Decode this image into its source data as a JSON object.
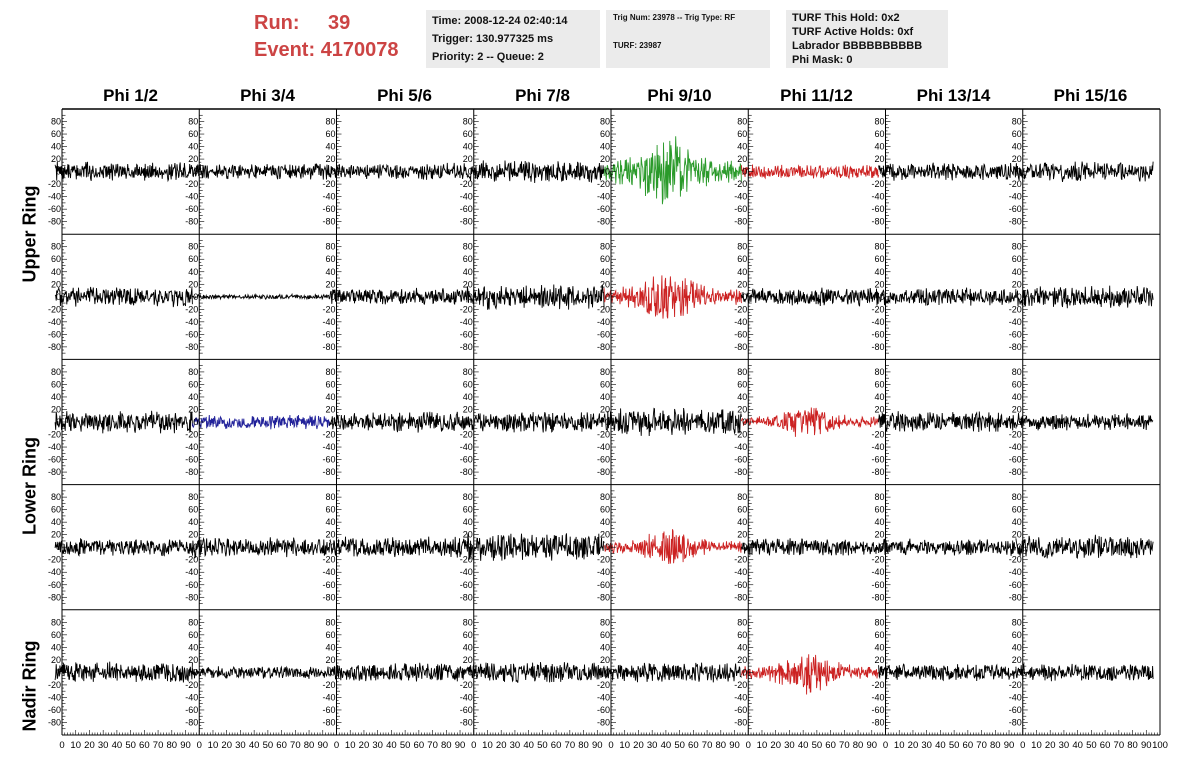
{
  "header": {
    "run_label": "Run:",
    "run_value": "39",
    "event_label": "Event:",
    "event_value": "4170078",
    "time": "Time: 2008-12-24 02:40:14",
    "trigger": "Trigger: 130.977325 ms",
    "priority": "Priority: 2 -- Queue: 2",
    "trig_num": "Trig Num: 23978 -- Trig Type: RF",
    "turf": "TURF: 23987",
    "turf_hold": "TURF This Hold: 0x2",
    "turf_active": "TURF Active Holds: 0xf",
    "labrador": "Labrador BBBBBBBBBB",
    "phi_mask": "Phi Mask: 0"
  },
  "columns": [
    "Phi 1/2",
    "Phi 3/4",
    "Phi 5/6",
    "Phi 7/8",
    "Phi 9/10",
    "Phi 11/12",
    "Phi 13/14",
    "Phi 15/16"
  ],
  "rings": [
    "Upper Ring",
    "Lower Ring",
    "Nadir Ring"
  ],
  "colors": {
    "default": "#000000",
    "green": "#2a9a2a",
    "red": "#cc2222",
    "blue": "#22229a"
  },
  "chart_data": {
    "type": "line",
    "grid_rows": 5,
    "grid_cols": 8,
    "xlim": [
      0,
      100
    ],
    "ylim": [
      -100,
      100
    ],
    "x_ticks": [
      0,
      10,
      20,
      30,
      40,
      50,
      60,
      70,
      80,
      90,
      100
    ],
    "y_ticks": [
      -80,
      -60,
      -40,
      -20,
      0,
      20,
      40,
      60,
      80
    ],
    "samples_per_trace": 260,
    "panels": [
      {
        "row": 0,
        "col": 0,
        "color": "default",
        "amplitude": 12
      },
      {
        "row": 0,
        "col": 1,
        "color": "default",
        "amplitude": 10
      },
      {
        "row": 0,
        "col": 2,
        "color": "default",
        "amplitude": 11
      },
      {
        "row": 0,
        "col": 3,
        "color": "default",
        "amplitude": 14
      },
      {
        "row": 0,
        "col": 4,
        "color": "green",
        "amplitude": 30
      },
      {
        "row": 0,
        "col": 5,
        "color": "red",
        "amplitude": 9
      },
      {
        "row": 0,
        "col": 6,
        "color": "default",
        "amplitude": 11
      },
      {
        "row": 0,
        "col": 7,
        "color": "default",
        "amplitude": 13
      },
      {
        "row": 1,
        "col": 0,
        "color": "default",
        "amplitude": 13
      },
      {
        "row": 1,
        "col": 1,
        "color": "default",
        "amplitude": 3
      },
      {
        "row": 1,
        "col": 2,
        "color": "default",
        "amplitude": 11
      },
      {
        "row": 1,
        "col": 3,
        "color": "default",
        "amplitude": 16
      },
      {
        "row": 1,
        "col": 4,
        "color": "red",
        "amplitude": 22
      },
      {
        "row": 1,
        "col": 5,
        "color": "default",
        "amplitude": 11
      },
      {
        "row": 1,
        "col": 6,
        "color": "default",
        "amplitude": 11
      },
      {
        "row": 1,
        "col": 7,
        "color": "default",
        "amplitude": 15
      },
      {
        "row": 2,
        "col": 0,
        "color": "default",
        "amplitude": 14
      },
      {
        "row": 2,
        "col": 1,
        "color": "blue",
        "amplitude": 9
      },
      {
        "row": 2,
        "col": 2,
        "color": "default",
        "amplitude": 13
      },
      {
        "row": 2,
        "col": 3,
        "color": "default",
        "amplitude": 13
      },
      {
        "row": 2,
        "col": 4,
        "color": "default",
        "amplitude": 18
      },
      {
        "row": 2,
        "col": 5,
        "color": "red",
        "amplitude": 13
      },
      {
        "row": 2,
        "col": 6,
        "color": "default",
        "amplitude": 13
      },
      {
        "row": 2,
        "col": 7,
        "color": "default",
        "amplitude": 11
      },
      {
        "row": 3,
        "col": 0,
        "color": "default",
        "amplitude": 11
      },
      {
        "row": 3,
        "col": 1,
        "color": "default",
        "amplitude": 13
      },
      {
        "row": 3,
        "col": 2,
        "color": "default",
        "amplitude": 13
      },
      {
        "row": 3,
        "col": 3,
        "color": "default",
        "amplitude": 18
      },
      {
        "row": 3,
        "col": 4,
        "color": "red",
        "amplitude": 15
      },
      {
        "row": 3,
        "col": 5,
        "color": "default",
        "amplitude": 11
      },
      {
        "row": 3,
        "col": 6,
        "color": "default",
        "amplitude": 11
      },
      {
        "row": 3,
        "col": 7,
        "color": "default",
        "amplitude": 15
      },
      {
        "row": 4,
        "col": 0,
        "color": "default",
        "amplitude": 13
      },
      {
        "row": 4,
        "col": 1,
        "color": "default",
        "amplitude": 8
      },
      {
        "row": 4,
        "col": 2,
        "color": "default",
        "amplitude": 13
      },
      {
        "row": 4,
        "col": 3,
        "color": "default",
        "amplitude": 13
      },
      {
        "row": 4,
        "col": 4,
        "color": "default",
        "amplitude": 13
      },
      {
        "row": 4,
        "col": 5,
        "color": "red",
        "amplitude": 17
      },
      {
        "row": 4,
        "col": 6,
        "color": "default",
        "amplitude": 11
      },
      {
        "row": 4,
        "col": 7,
        "color": "default",
        "amplitude": 11
      }
    ]
  }
}
